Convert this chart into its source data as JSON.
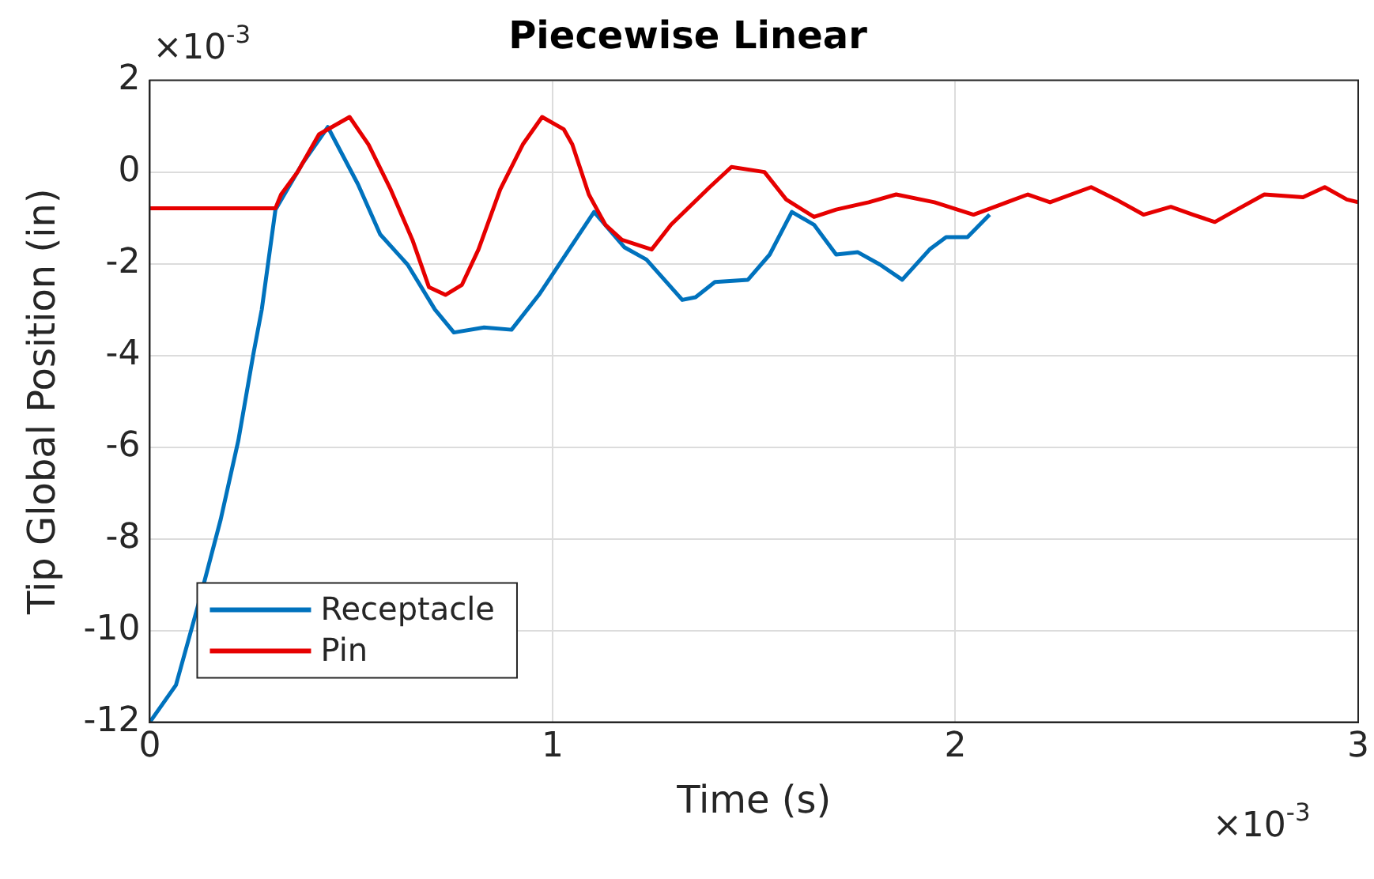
{
  "chart_data": {
    "type": "line",
    "title": "Piecewise Linear",
    "xlabel": "Time (s)",
    "ylabel": "Tip Global Position (in)",
    "annotations": [
      "×10$^{-3}$",
      "×10$^{-3}$"
    ],
    "xlim": [
      0,
      3
    ],
    "xticks": [
      0,
      1,
      2,
      3
    ],
    "ylim": [
      -12,
      2
    ],
    "yticks": [
      -12,
      -10,
      -8,
      -6,
      -4,
      -2,
      0,
      2
    ],
    "grid": true,
    "legend": "bottom left",
    "line_style": "solid",
    "marker": "none",
    "series": [
      {
        "name": "Receptacle",
        "color": "#0072bd",
        "x": [
          0,
          0.065,
          0.12,
          0.176,
          0.22,
          0.257,
          0.278,
          0.312,
          0.38,
          0.442,
          0.517,
          0.572,
          0.64,
          0.708,
          0.755,
          0.83,
          0.898,
          0.966,
          1.01,
          1.103,
          1.178,
          1.233,
          1.322,
          1.355,
          1.403,
          1.485,
          1.539,
          1.594,
          1.649,
          1.704,
          1.758,
          1.813,
          1.868,
          1.936,
          1.977,
          2.03,
          2.085
        ],
        "values": [
          -12,
          -11.19,
          -9.45,
          -7.58,
          -5.85,
          -3.98,
          -3.0,
          -0.82,
          0.2,
          0.98,
          -0.27,
          -1.36,
          -2.02,
          -3.0,
          -3.5,
          -3.39,
          -3.44,
          -2.68,
          -2.1,
          -0.87,
          -1.64,
          -1.91,
          -2.79,
          -2.73,
          -2.4,
          -2.35,
          -1.8,
          -0.87,
          -1.15,
          -1.8,
          -1.75,
          -2.02,
          -2.35,
          -1.69,
          -1.42,
          -1.42,
          -0.93
        ]
      },
      {
        "name": "Pin",
        "color": "#e60000",
        "x": [
          0,
          0.312,
          0.326,
          0.367,
          0.42,
          0.496,
          0.543,
          0.598,
          0.652,
          0.693,
          0.734,
          0.775,
          0.816,
          0.87,
          0.926,
          0.974,
          1.028,
          1.049,
          1.09,
          1.131,
          1.172,
          1.246,
          1.294,
          1.39,
          1.444,
          1.526,
          1.58,
          1.649,
          1.704,
          1.785,
          1.853,
          1.948,
          2.045,
          2.18,
          2.235,
          2.337,
          2.399,
          2.467,
          2.535,
          2.59,
          2.644,
          2.699,
          2.767,
          2.863,
          2.917,
          2.972,
          3.0
        ],
        "values": [
          -0.79,
          -0.79,
          -0.49,
          0,
          0.82,
          1.2,
          0.6,
          -0.38,
          -1.48,
          -2.51,
          -2.68,
          -2.46,
          -1.69,
          -0.38,
          0.6,
          1.2,
          0.93,
          0.6,
          -0.49,
          -1.15,
          -1.48,
          -1.69,
          -1.15,
          -0.33,
          0.11,
          0,
          -0.6,
          -0.98,
          -0.82,
          -0.66,
          -0.49,
          -0.66,
          -0.93,
          -0.49,
          -0.66,
          -0.33,
          -0.6,
          -0.93,
          -0.76,
          -0.93,
          -1.09,
          -0.82,
          -0.49,
          -0.55,
          -0.33,
          -0.6,
          -0.66
        ]
      }
    ]
  }
}
